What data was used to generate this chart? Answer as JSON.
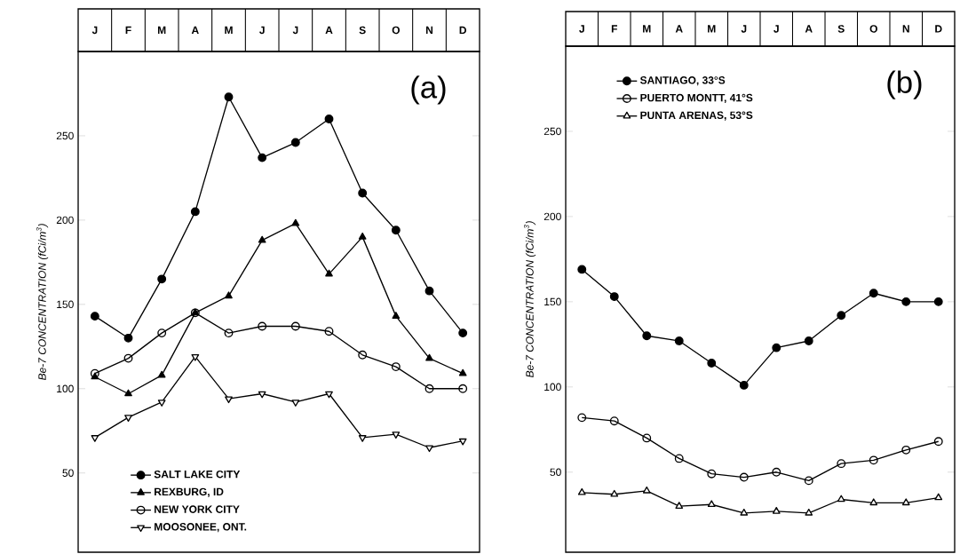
{
  "chart_data": [
    {
      "type": "line",
      "categories": [
        "J",
        "F",
        "M",
        "A",
        "M",
        "J",
        "J",
        "A",
        "S",
        "O",
        "N",
        "D"
      ],
      "ylabel": "Be-7 CONCENTRATION (fCi/m$^{3}$)",
      "ylim": [
        3,
        300
      ],
      "yticks": [
        50,
        100,
        150,
        200,
        250
      ],
      "legend": "bottom left",
      "annotations": [
        "(a)"
      ],
      "series": [
        {
          "name": "SALT LAKE CITY",
          "color": "#000000",
          "marker": "circle",
          "values": [
            143,
            130,
            165,
            205,
            273,
            237,
            246,
            260,
            216,
            194,
            158,
            133
          ]
        },
        {
          "name": "REXBURG, ID",
          "color": "#000000",
          "marker": "triangle",
          "values": [
            107,
            97,
            108,
            145,
            155,
            188,
            198,
            168,
            190,
            143,
            118,
            109
          ]
        },
        {
          "name": "NEW YORK CITY",
          "color": "#000000",
          "marker": "circle-open",
          "values": [
            109,
            118,
            133,
            145,
            133,
            137,
            137,
            134,
            120,
            113,
            100,
            100
          ]
        },
        {
          "name": "MOOSONEE, ONT.",
          "color": "#000000",
          "marker": "triangle-down-open",
          "values": [
            71,
            83,
            92,
            119,
            94,
            97,
            92,
            97,
            71,
            73,
            65,
            69
          ]
        }
      ]
    },
    {
      "type": "line",
      "categories": [
        "J",
        "F",
        "M",
        "A",
        "M",
        "J",
        "J",
        "A",
        "S",
        "O",
        "N",
        "D"
      ],
      "ylabel": "Be-7 CONCENTRATION (fCi/m$^{3}$)",
      "ylim": [
        3,
        300
      ],
      "yticks": [
        50,
        100,
        150,
        200,
        250
      ],
      "legend": "top left",
      "annotations": [
        "(b)"
      ],
      "series": [
        {
          "name": "SANTIAGO, 33°S",
          "color": "#000000",
          "marker": "circle",
          "values": [
            169,
            153,
            130,
            127,
            114,
            101,
            123,
            127,
            142,
            155,
            150,
            150
          ]
        },
        {
          "name": "PUERTO MONTT, 41°S",
          "color": "#000000",
          "marker": "circle-open",
          "values": [
            82,
            80,
            70,
            58,
            49,
            47,
            50,
            45,
            55,
            57,
            63,
            68
          ]
        },
        {
          "name": "PUNTA ARENAS, 53°S",
          "color": "#000000",
          "marker": "triangle-open",
          "values": [
            38,
            37,
            39,
            30,
            31,
            26,
            27,
            26,
            34,
            32,
            32,
            35
          ]
        }
      ]
    }
  ]
}
